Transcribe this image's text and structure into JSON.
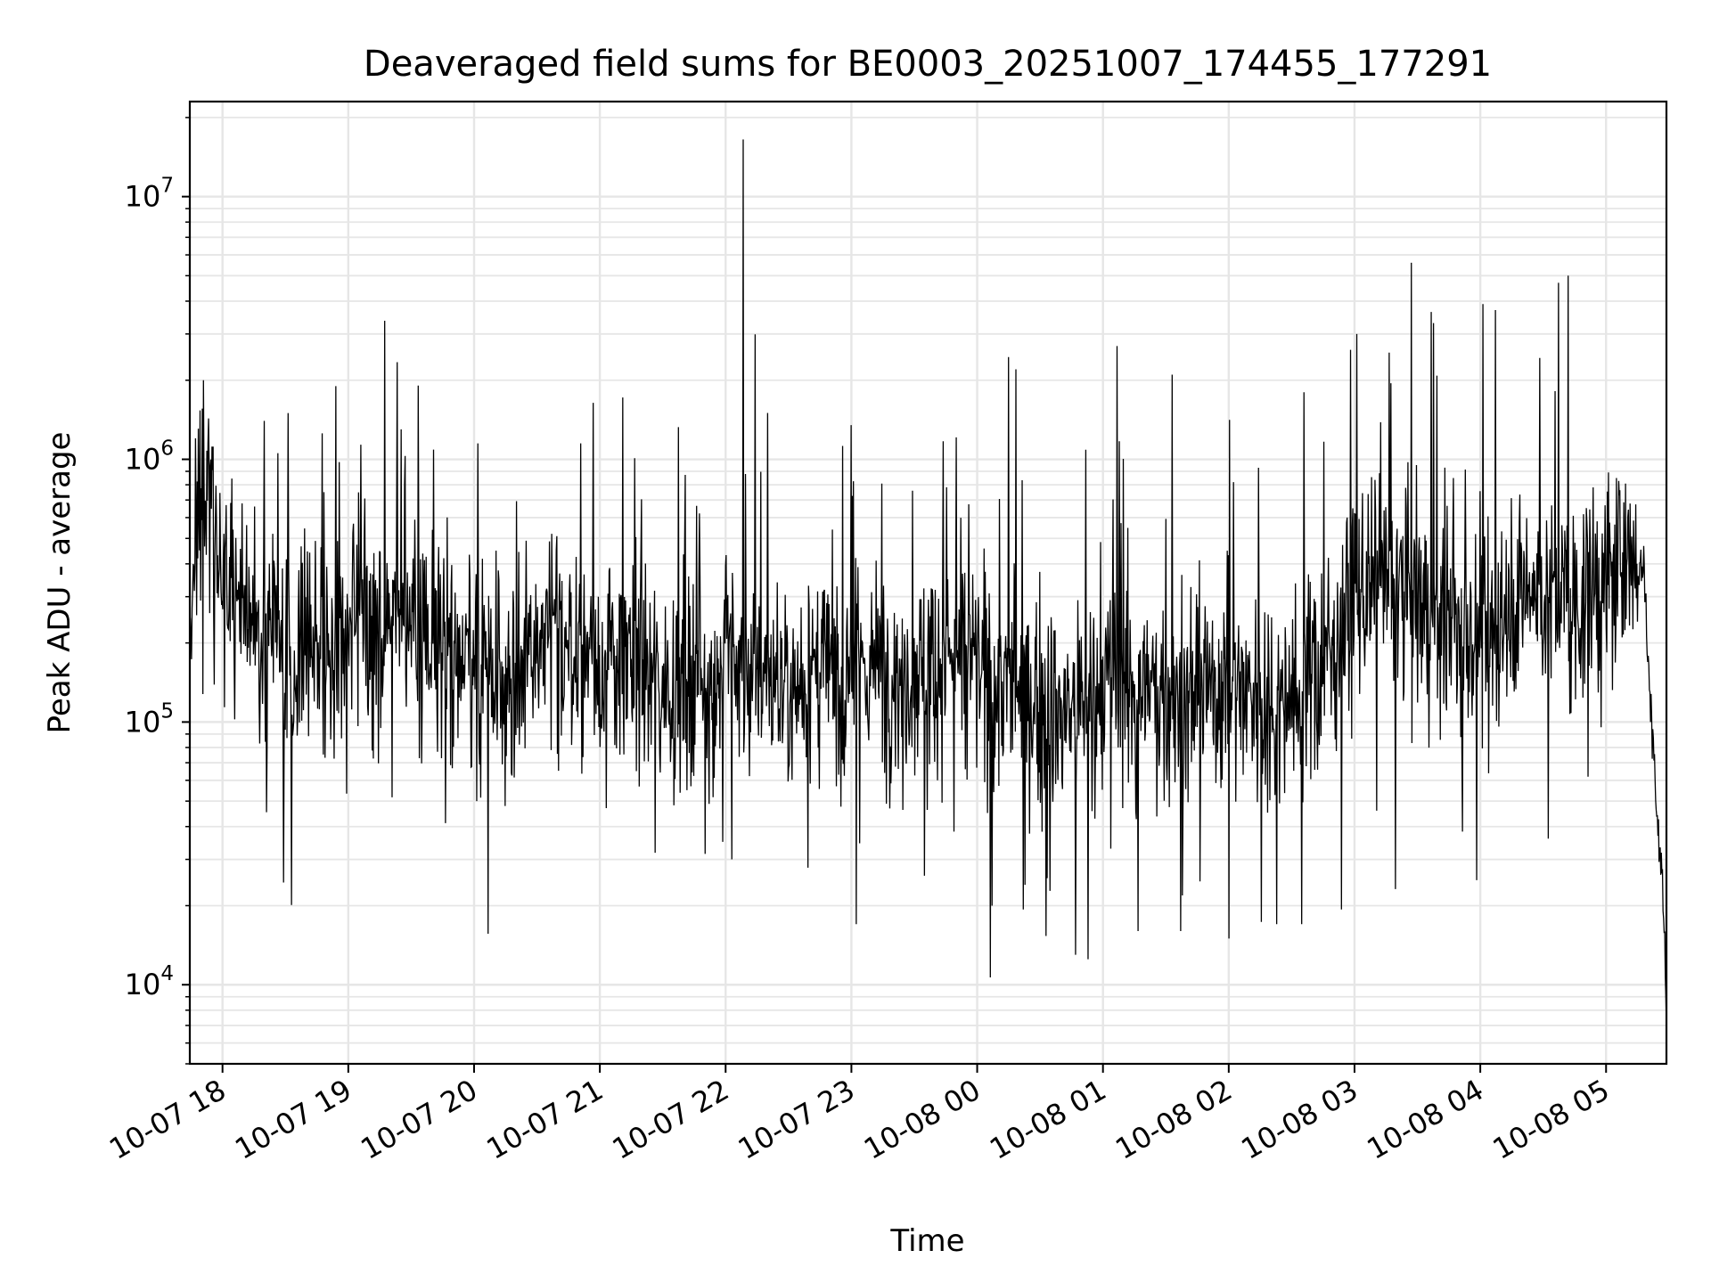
{
  "chart_data": {
    "type": "line",
    "title": "Deaveraged field sums for BE0003_20251007_174455_177291",
    "xlabel": "Time",
    "ylabel": "Peak ADU - average",
    "yscale": "log",
    "ylim": [
      5000,
      23000000
    ],
    "xlim_hours": [
      17.74,
      29.48
    ],
    "grid": true,
    "line_color": "#000000",
    "grid_color": "#e6e6e6",
    "x_ticks": [
      {
        "hour": 18,
        "label": "10-07 18"
      },
      {
        "hour": 19,
        "label": "10-07 19"
      },
      {
        "hour": 20,
        "label": "10-07 20"
      },
      {
        "hour": 21,
        "label": "10-07 21"
      },
      {
        "hour": 22,
        "label": "10-07 22"
      },
      {
        "hour": 23,
        "label": "10-07 23"
      },
      {
        "hour": 24,
        "label": "10-08 00"
      },
      {
        "hour": 25,
        "label": "10-08 01"
      },
      {
        "hour": 26,
        "label": "10-08 02"
      },
      {
        "hour": 27,
        "label": "10-08 03"
      },
      {
        "hour": 28,
        "label": "10-08 04"
      },
      {
        "hour": 29,
        "label": "10-08 05"
      }
    ],
    "y_ticks": [
      {
        "value": 10000,
        "base": "10",
        "exp": "4"
      },
      {
        "value": 100000,
        "base": "10",
        "exp": "5"
      },
      {
        "value": 1000000,
        "base": "10",
        "exp": "6"
      },
      {
        "value": 10000000,
        "base": "10",
        "exp": "7"
      }
    ],
    "series": [
      {
        "name": "deaveraged field sums",
        "x_hours": [
          17.74,
          17.77,
          17.8,
          17.85,
          17.9,
          17.95,
          18.0,
          18.05,
          18.1,
          18.2,
          18.3,
          18.4,
          18.5,
          18.6,
          18.7,
          18.8,
          18.9,
          19.0,
          19.2,
          19.4,
          19.6,
          19.8,
          20.0,
          20.2,
          20.4,
          20.6,
          20.8,
          21.0,
          21.2,
          21.4,
          21.6,
          21.8,
          22.0,
          22.15,
          22.3,
          22.5,
          22.7,
          22.9,
          23.05,
          23.2,
          23.4,
          23.6,
          23.8,
          24.0,
          24.1,
          24.25,
          24.4,
          24.6,
          24.75,
          24.9,
          25.0,
          25.1,
          25.2,
          25.4,
          25.6,
          25.8,
          26.0,
          26.2,
          26.4,
          26.6,
          26.8,
          27.0,
          27.2,
          27.4,
          27.5,
          27.6,
          27.8,
          28.0,
          28.1,
          28.2,
          28.4,
          28.6,
          28.8,
          29.0,
          29.1,
          29.2,
          29.25,
          29.3,
          29.35,
          29.4,
          29.45,
          29.48
        ],
        "y_median": [
          300000,
          380000,
          700000,
          800000,
          700000,
          550000,
          420000,
          320000,
          280000,
          260000,
          220000,
          200000,
          180000,
          180000,
          190000,
          170000,
          180000,
          200000,
          220000,
          250000,
          240000,
          200000,
          160000,
          150000,
          160000,
          200000,
          190000,
          180000,
          170000,
          150000,
          140000,
          150000,
          170000,
          160000,
          150000,
          140000,
          150000,
          160000,
          170000,
          160000,
          150000,
          170000,
          180000,
          160000,
          140000,
          130000,
          120000,
          110000,
          110000,
          120000,
          130000,
          150000,
          140000,
          130000,
          120000,
          130000,
          140000,
          130000,
          120000,
          130000,
          180000,
          300000,
          320000,
          300000,
          280000,
          260000,
          220000,
          200000,
          210000,
          300000,
          320000,
          300000,
          280000,
          350000,
          380000,
          400000,
          390000,
          400000,
          120000,
          50000,
          25000,
          8000
        ],
        "spikes": [
          {
            "hour": 17.85,
            "value": 2000000
          },
          {
            "hour": 18.33,
            "value": 1400000
          },
          {
            "hour": 18.52,
            "value": 1500000
          },
          {
            "hour": 18.9,
            "value": 1900000
          },
          {
            "hour": 19.42,
            "value": 1300000
          },
          {
            "hour": 20.03,
            "value": 1150000
          },
          {
            "hour": 20.85,
            "value": 1150000
          },
          {
            "hour": 22.14,
            "value": 16500000
          },
          {
            "hour": 23.0,
            "value": 1350000
          },
          {
            "hour": 24.25,
            "value": 2450000
          },
          {
            "hour": 24.31,
            "value": 2200000
          },
          {
            "hour": 25.11,
            "value": 2700000
          },
          {
            "hour": 25.55,
            "value": 2100000
          },
          {
            "hour": 26.6,
            "value": 1800000
          },
          {
            "hour": 27.02,
            "value": 3000000
          },
          {
            "hour": 27.45,
            "value": 5600000
          },
          {
            "hour": 27.63,
            "value": 3300000
          },
          {
            "hour": 28.02,
            "value": 3900000
          },
          {
            "hour": 28.12,
            "value": 3700000
          },
          {
            "hour": 28.62,
            "value": 4700000
          },
          {
            "hour": 28.7,
            "value": 5000000
          }
        ],
        "dips": [
          {
            "hour": 20.02,
            "value": 50000
          },
          {
            "hour": 21.05,
            "value": 47000
          },
          {
            "hour": 22.05,
            "value": 30000
          },
          {
            "hour": 23.04,
            "value": 17000
          },
          {
            "hour": 23.58,
            "value": 26000
          },
          {
            "hour": 24.12,
            "value": 20000
          },
          {
            "hour": 24.38,
            "value": 24000
          },
          {
            "hour": 24.78,
            "value": 13000
          },
          {
            "hour": 24.88,
            "value": 12500
          },
          {
            "hour": 25.28,
            "value": 16000
          },
          {
            "hour": 25.62,
            "value": 16000
          },
          {
            "hour": 26.0,
            "value": 15000
          },
          {
            "hour": 26.38,
            "value": 17000
          },
          {
            "hour": 26.58,
            "value": 17000
          },
          {
            "hour": 27.97,
            "value": 25000
          },
          {
            "hour": 29.48,
            "value": 7000
          }
        ]
      }
    ]
  }
}
